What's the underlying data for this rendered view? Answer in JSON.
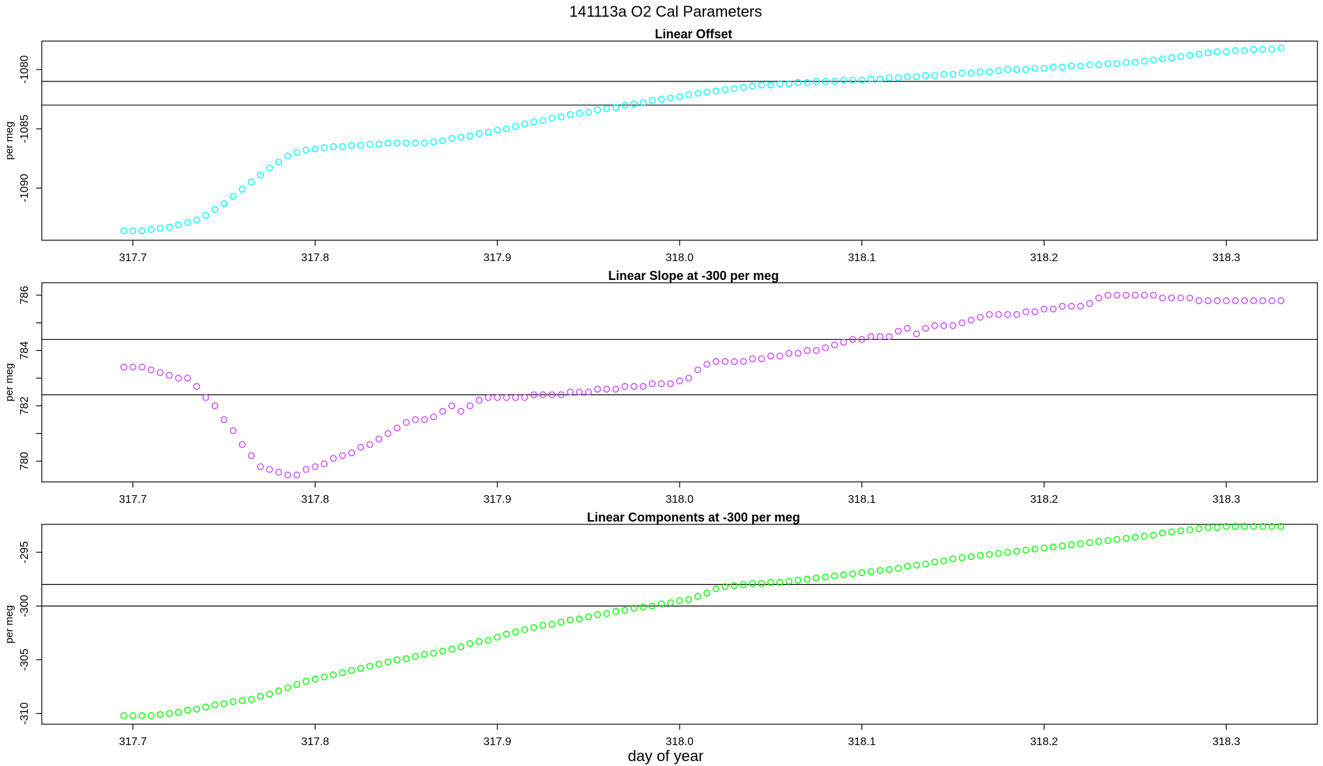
{
  "figure": {
    "title": "141113a   O2 Cal Parameters",
    "xlabel": "day of year"
  },
  "chart_data": [
    {
      "type": "scatter",
      "title": "Linear Offset",
      "ylabel": "per meg",
      "color": "#00ffff",
      "xlim": [
        317.65,
        318.35
      ],
      "ylim": [
        -1094.4,
        -1077.6
      ],
      "xticks": [
        "317.7",
        "317.8",
        "317.9",
        "318.0",
        "318.1",
        "318.2",
        "318.3"
      ],
      "yticks": [
        "-1080",
        "-1085",
        "-1090"
      ],
      "hlines": [
        -1081.0,
        -1083.0
      ],
      "x": [
        317.695,
        317.7,
        317.705,
        317.71,
        317.715,
        317.72,
        317.725,
        317.73,
        317.735,
        317.74,
        317.745,
        317.75,
        317.755,
        317.76,
        317.765,
        317.77,
        317.775,
        317.78,
        317.785,
        317.79,
        317.795,
        317.8,
        317.805,
        317.81,
        317.815,
        317.82,
        317.825,
        317.83,
        317.835,
        317.84,
        317.845,
        317.85,
        317.855,
        317.86,
        317.865,
        317.87,
        317.875,
        317.88,
        317.885,
        317.89,
        317.895,
        317.9,
        317.905,
        317.91,
        317.915,
        317.92,
        317.925,
        317.93,
        317.935,
        317.94,
        317.945,
        317.95,
        317.955,
        317.96,
        317.965,
        317.97,
        317.975,
        317.98,
        317.985,
        317.99,
        317.995,
        318.0,
        318.005,
        318.01,
        318.015,
        318.02,
        318.025,
        318.03,
        318.035,
        318.04,
        318.045,
        318.05,
        318.055,
        318.06,
        318.065,
        318.07,
        318.075,
        318.08,
        318.085,
        318.09,
        318.095,
        318.1,
        318.105,
        318.11,
        318.115,
        318.12,
        318.125,
        318.13,
        318.135,
        318.14,
        318.145,
        318.15,
        318.155,
        318.16,
        318.165,
        318.17,
        318.175,
        318.18,
        318.185,
        318.19,
        318.195,
        318.2,
        318.205,
        318.21,
        318.215,
        318.22,
        318.225,
        318.23,
        318.235,
        318.24,
        318.245,
        318.25,
        318.255,
        318.26,
        318.265,
        318.27,
        318.275,
        318.28,
        318.285,
        318.29,
        318.295,
        318.3,
        318.305,
        318.31,
        318.315,
        318.32,
        318.325,
        318.33
      ],
      "y": [
        -1093.6,
        -1093.6,
        -1093.6,
        -1093.5,
        -1093.4,
        -1093.3,
        -1093.1,
        -1092.9,
        -1092.7,
        -1092.3,
        -1091.8,
        -1091.3,
        -1090.7,
        -1090.1,
        -1089.5,
        -1088.9,
        -1088.3,
        -1087.8,
        -1087.3,
        -1087.0,
        -1086.8,
        -1086.7,
        -1086.6,
        -1086.5,
        -1086.5,
        -1086.4,
        -1086.4,
        -1086.3,
        -1086.3,
        -1086.2,
        -1086.2,
        -1086.2,
        -1086.2,
        -1086.2,
        -1086.1,
        -1086.0,
        -1085.8,
        -1085.7,
        -1085.6,
        -1085.4,
        -1085.3,
        -1085.1,
        -1085.0,
        -1084.8,
        -1084.6,
        -1084.4,
        -1084.3,
        -1084.1,
        -1084.0,
        -1083.8,
        -1083.7,
        -1083.6,
        -1083.4,
        -1083.3,
        -1083.2,
        -1083.0,
        -1082.9,
        -1082.8,
        -1082.6,
        -1082.5,
        -1082.4,
        -1082.3,
        -1082.1,
        -1082.0,
        -1081.9,
        -1081.8,
        -1081.7,
        -1081.6,
        -1081.5,
        -1081.4,
        -1081.3,
        -1081.3,
        -1081.2,
        -1081.2,
        -1081.1,
        -1081.1,
        -1081.0,
        -1081.0,
        -1081.0,
        -1080.9,
        -1080.9,
        -1080.9,
        -1080.8,
        -1080.8,
        -1080.7,
        -1080.7,
        -1080.6,
        -1080.6,
        -1080.5,
        -1080.5,
        -1080.4,
        -1080.4,
        -1080.3,
        -1080.3,
        -1080.2,
        -1080.2,
        -1080.1,
        -1080.0,
        -1080.0,
        -1080.0,
        -1079.9,
        -1079.9,
        -1079.8,
        -1079.8,
        -1079.7,
        -1079.7,
        -1079.6,
        -1079.6,
        -1079.5,
        -1079.5,
        -1079.4,
        -1079.4,
        -1079.3,
        -1079.2,
        -1079.1,
        -1079.0,
        -1078.9,
        -1078.8,
        -1078.7,
        -1078.6,
        -1078.5,
        -1078.5,
        -1078.4,
        -1078.4,
        -1078.3,
        -1078.3,
        -1078.3,
        -1078.2
      ]
    },
    {
      "type": "scatter",
      "title": "Linear Slope at -300 per meg",
      "ylabel": "per meg",
      "color": "#cc44ff",
      "xlim": [
        317.65,
        318.35
      ],
      "ylim": [
        779.25,
        786.45
      ],
      "xticks": [
        "317.7",
        "317.8",
        "317.9",
        "318.0",
        "318.1",
        "318.2",
        "318.3"
      ],
      "yticks": [
        "786",
        "784",
        "782",
        "780"
      ],
      "yminor": [
        785,
        783,
        781
      ],
      "hlines": [
        784.4,
        782.4
      ],
      "x": [
        317.695,
        317.7,
        317.705,
        317.71,
        317.715,
        317.72,
        317.725,
        317.73,
        317.735,
        317.74,
        317.745,
        317.75,
        317.755,
        317.76,
        317.765,
        317.77,
        317.775,
        317.78,
        317.785,
        317.79,
        317.795,
        317.8,
        317.805,
        317.81,
        317.815,
        317.82,
        317.825,
        317.83,
        317.835,
        317.84,
        317.845,
        317.85,
        317.855,
        317.86,
        317.865,
        317.87,
        317.875,
        317.88,
        317.885,
        317.89,
        317.895,
        317.9,
        317.905,
        317.91,
        317.915,
        317.92,
        317.925,
        317.93,
        317.935,
        317.94,
        317.945,
        317.95,
        317.955,
        317.96,
        317.965,
        317.97,
        317.975,
        317.98,
        317.985,
        317.99,
        317.995,
        318.0,
        318.005,
        318.01,
        318.015,
        318.02,
        318.025,
        318.03,
        318.035,
        318.04,
        318.045,
        318.05,
        318.055,
        318.06,
        318.065,
        318.07,
        318.075,
        318.08,
        318.085,
        318.09,
        318.095,
        318.1,
        318.105,
        318.11,
        318.115,
        318.12,
        318.125,
        318.13,
        318.135,
        318.14,
        318.145,
        318.15,
        318.155,
        318.16,
        318.165,
        318.17,
        318.175,
        318.18,
        318.185,
        318.19,
        318.195,
        318.2,
        318.205,
        318.21,
        318.215,
        318.22,
        318.225,
        318.23,
        318.235,
        318.24,
        318.245,
        318.25,
        318.255,
        318.26,
        318.265,
        318.27,
        318.275,
        318.28,
        318.285,
        318.29,
        318.295,
        318.3,
        318.305,
        318.31,
        318.315,
        318.32,
        318.325,
        318.33
      ],
      "y": [
        783.4,
        783.4,
        783.4,
        783.3,
        783.2,
        783.1,
        783.0,
        783.0,
        782.7,
        782.3,
        782.0,
        781.5,
        781.1,
        780.6,
        780.2,
        779.8,
        779.7,
        779.6,
        779.5,
        779.5,
        779.7,
        779.8,
        779.9,
        780.1,
        780.2,
        780.3,
        780.5,
        780.6,
        780.8,
        781.0,
        781.2,
        781.4,
        781.5,
        781.5,
        781.6,
        781.8,
        782.0,
        781.8,
        782.0,
        782.2,
        782.3,
        782.3,
        782.3,
        782.3,
        782.3,
        782.4,
        782.4,
        782.4,
        782.4,
        782.5,
        782.5,
        782.5,
        782.6,
        782.6,
        782.6,
        782.7,
        782.7,
        782.7,
        782.8,
        782.8,
        782.8,
        782.9,
        783.0,
        783.3,
        783.5,
        783.6,
        783.6,
        783.6,
        783.6,
        783.7,
        783.7,
        783.8,
        783.8,
        783.9,
        783.9,
        784.0,
        784.0,
        784.1,
        784.2,
        784.3,
        784.4,
        784.4,
        784.5,
        784.5,
        784.5,
        784.7,
        784.8,
        784.6,
        784.8,
        784.9,
        784.9,
        784.9,
        785.0,
        785.1,
        785.2,
        785.3,
        785.3,
        785.3,
        785.3,
        785.4,
        785.4,
        785.5,
        785.5,
        785.6,
        785.6,
        785.6,
        785.7,
        785.9,
        786.0,
        786.0,
        786.0,
        786.0,
        786.0,
        786.0,
        785.9,
        785.9,
        785.9,
        785.9,
        785.8,
        785.8,
        785.8,
        785.8,
        785.8,
        785.8,
        785.8,
        785.8,
        785.8,
        785.8
      ]
    },
    {
      "type": "scatter",
      "title": "Linear Components at -300 per meg",
      "ylabel": "per meg",
      "color": "#00ff00",
      "xlim": [
        317.65,
        318.35
      ],
      "ylim": [
        -311.0,
        -292.4
      ],
      "xticks": [
        "317.7",
        "317.8",
        "317.9",
        "318.0",
        "318.1",
        "318.2",
        "318.3"
      ],
      "yticks": [
        "-295",
        "-300",
        "-305",
        "-310"
      ],
      "hlines": [
        -298.0,
        -300.0
      ],
      "x": [
        317.695,
        317.7,
        317.705,
        317.71,
        317.715,
        317.72,
        317.725,
        317.73,
        317.735,
        317.74,
        317.745,
        317.75,
        317.755,
        317.76,
        317.765,
        317.77,
        317.775,
        317.78,
        317.785,
        317.79,
        317.795,
        317.8,
        317.805,
        317.81,
        317.815,
        317.82,
        317.825,
        317.83,
        317.835,
        317.84,
        317.845,
        317.85,
        317.855,
        317.86,
        317.865,
        317.87,
        317.875,
        317.88,
        317.885,
        317.89,
        317.895,
        317.9,
        317.905,
        317.91,
        317.915,
        317.92,
        317.925,
        317.93,
        317.935,
        317.94,
        317.945,
        317.95,
        317.955,
        317.96,
        317.965,
        317.97,
        317.975,
        317.98,
        317.985,
        317.99,
        317.995,
        318.0,
        318.005,
        318.01,
        318.015,
        318.02,
        318.025,
        318.03,
        318.035,
        318.04,
        318.045,
        318.05,
        318.055,
        318.06,
        318.065,
        318.07,
        318.075,
        318.08,
        318.085,
        318.09,
        318.095,
        318.1,
        318.105,
        318.11,
        318.115,
        318.12,
        318.125,
        318.13,
        318.135,
        318.14,
        318.145,
        318.15,
        318.155,
        318.16,
        318.165,
        318.17,
        318.175,
        318.18,
        318.185,
        318.19,
        318.195,
        318.2,
        318.205,
        318.21,
        318.215,
        318.22,
        318.225,
        318.23,
        318.235,
        318.24,
        318.245,
        318.25,
        318.255,
        318.26,
        318.265,
        318.27,
        318.275,
        318.28,
        318.285,
        318.29,
        318.295,
        318.3,
        318.305,
        318.31,
        318.315,
        318.32,
        318.325,
        318.33
      ],
      "y": [
        -310.2,
        -310.2,
        -310.2,
        -310.2,
        -310.1,
        -310.0,
        -309.9,
        -309.7,
        -309.6,
        -309.4,
        -309.2,
        -309.1,
        -308.9,
        -308.8,
        -308.7,
        -308.4,
        -308.2,
        -307.9,
        -307.6,
        -307.3,
        -307.0,
        -306.8,
        -306.6,
        -306.4,
        -306.2,
        -306.0,
        -305.8,
        -305.6,
        -305.4,
        -305.2,
        -305.0,
        -304.9,
        -304.7,
        -304.5,
        -304.4,
        -304.2,
        -304.0,
        -303.8,
        -303.5,
        -303.3,
        -303.2,
        -302.9,
        -302.6,
        -302.4,
        -302.2,
        -302.0,
        -301.8,
        -301.7,
        -301.5,
        -301.3,
        -301.2,
        -301.0,
        -300.8,
        -300.7,
        -300.5,
        -300.4,
        -300.2,
        -300.1,
        -300.0,
        -299.8,
        -299.7,
        -299.5,
        -299.4,
        -299.1,
        -298.8,
        -298.4,
        -298.2,
        -298.1,
        -298.0,
        -297.9,
        -297.9,
        -297.8,
        -297.8,
        -297.7,
        -297.6,
        -297.5,
        -297.4,
        -297.3,
        -297.2,
        -297.1,
        -297.0,
        -296.9,
        -296.8,
        -296.7,
        -296.6,
        -296.5,
        -296.3,
        -296.2,
        -296.1,
        -295.9,
        -295.8,
        -295.6,
        -295.5,
        -295.4,
        -295.3,
        -295.2,
        -295.1,
        -295.0,
        -294.9,
        -294.8,
        -294.7,
        -294.6,
        -294.5,
        -294.4,
        -294.3,
        -294.2,
        -294.1,
        -294.0,
        -293.9,
        -293.8,
        -293.7,
        -293.6,
        -293.5,
        -293.4,
        -293.2,
        -293.1,
        -293.0,
        -292.9,
        -292.8,
        -292.7,
        -292.7,
        -292.6,
        -292.6,
        -292.6,
        -292.6,
        -292.6,
        -292.6,
        -292.6
      ]
    }
  ]
}
